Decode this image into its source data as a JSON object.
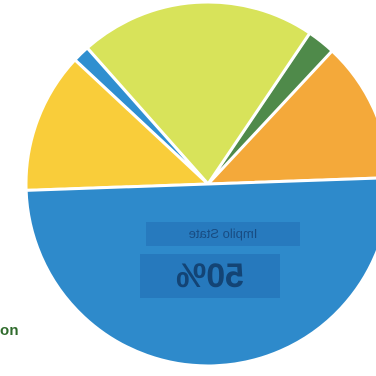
{
  "chart_data": {
    "type": "pie",
    "title": "",
    "slices": [
      {
        "value": 12.5,
        "color": "#f4a93a"
      },
      {
        "value": 2.5,
        "color": "#4f8a4a"
      },
      {
        "value": 21,
        "color": "#d8e35a"
      },
      {
        "value": 1.5,
        "color": "#2f8fd0"
      },
      {
        "value": 12.5,
        "color": "#f9cd3a"
      },
      {
        "value": 50,
        "color": "#2e8acb"
      }
    ],
    "annotations": {
      "side_label": "on",
      "inner_caption": "Impilo State",
      "inner_value": "50%"
    }
  }
}
